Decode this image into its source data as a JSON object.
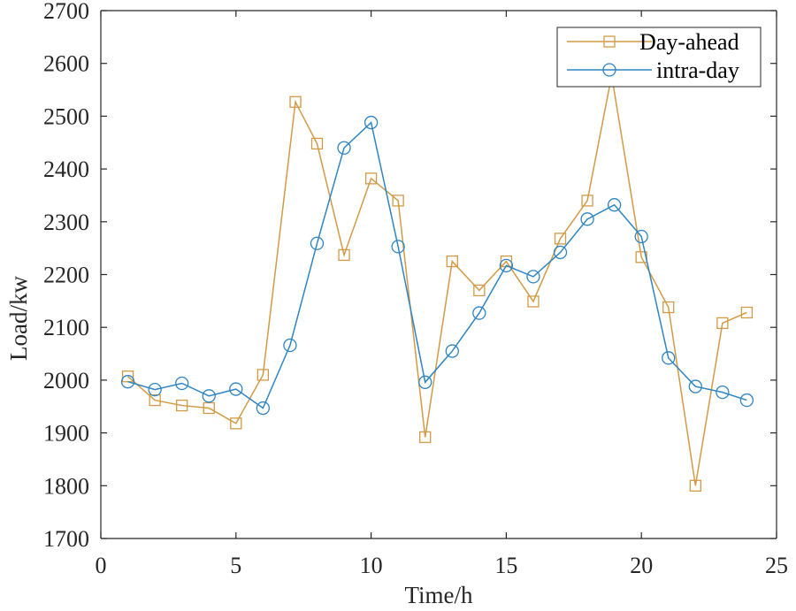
{
  "chart_data": {
    "type": "line",
    "title": "",
    "xlabel": "Time/h",
    "ylabel": "Load/kw",
    "xlim": [
      0,
      25
    ],
    "ylim": [
      1700,
      2700
    ],
    "xticks": [
      0,
      5,
      10,
      15,
      20,
      25
    ],
    "yticks": [
      1700,
      1800,
      1900,
      2000,
      2100,
      2200,
      2300,
      2400,
      2500,
      2600,
      2700
    ],
    "xtick_labels": [
      "0",
      "5",
      "10",
      "15",
      "20",
      "25"
    ],
    "ytick_labels": [
      "1700",
      "1800",
      "1900",
      "2000",
      "2100",
      "2200",
      "2300",
      "2400",
      "2500",
      "2600",
      "2700"
    ],
    "grid": false,
    "legend_position": "top-right",
    "series": [
      {
        "name": "Day-ahead",
        "color": "#D29A46",
        "marker": "square",
        "x": [
          1,
          2,
          3,
          4,
          5,
          6,
          7.2,
          8,
          9,
          10,
          11,
          12,
          13,
          14,
          15,
          16,
          17,
          18,
          18.9,
          20,
          21,
          22,
          23,
          23.9
        ],
        "values": [
          2007,
          1962,
          1952,
          1947,
          1918,
          2010,
          2527,
          2448,
          2237,
          2382,
          2340,
          1892,
          2225,
          2170,
          2225,
          2149,
          2268,
          2340,
          2577,
          2233,
          2138,
          1800,
          2108,
          2128
        ]
      },
      {
        "name": "intra-day",
        "color": "#2E85C2",
        "marker": "circle",
        "x": [
          1,
          2,
          3,
          4,
          5,
          6,
          7,
          8,
          9,
          10,
          11,
          12,
          13,
          14,
          15,
          16,
          17,
          18,
          19,
          20,
          21,
          22,
          23,
          23.9
        ],
        "values": [
          1997,
          1982,
          1994,
          1970,
          1983,
          1947,
          2066,
          2259,
          2440,
          2488,
          2253,
          1996,
          2055,
          2127,
          2217,
          2196,
          2242,
          2305,
          2332,
          2272,
          2042,
          1988,
          1977,
          1962
        ]
      }
    ]
  }
}
